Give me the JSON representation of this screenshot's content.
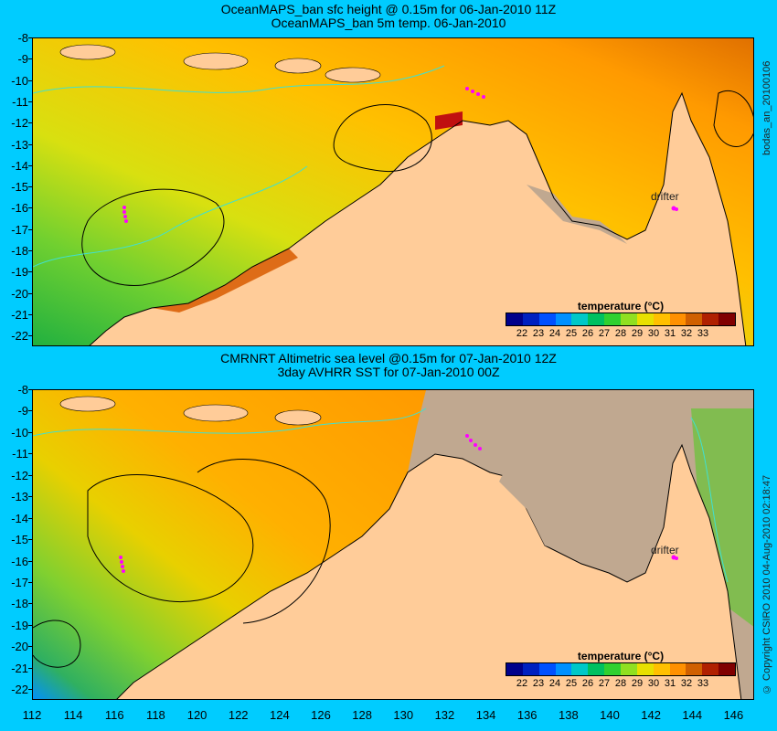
{
  "top": {
    "title1": "OceanMAPS_ban sfc height @ 0.15m for 06-Jan-2010 11Z",
    "title2": "OceanMAPS_ban 5m temp. 06-Jan-2010",
    "side_label": "bodas_an_20100106",
    "drifter_label": "drifter"
  },
  "bottom": {
    "title1": "CMRNRT Altimetric sea level  @0.15m  for 07-Jan-2010 12Z",
    "title2": "3day AVHRR SST for 07-Jan-2010 00Z",
    "side_label": "© Copyright CSIRO 2010   04-Aug-2010 02:18:47",
    "drifter_label": "drifter"
  },
  "colorbar": {
    "title": "temperature (°C)",
    "ticks": [
      "22",
      "23",
      "24",
      "25",
      "26",
      "27",
      "28",
      "29",
      "30",
      "31",
      "32",
      "33"
    ],
    "colors": [
      "#00008b",
      "#0020c0",
      "#0050ff",
      "#0090ff",
      "#00c8c8",
      "#00c060",
      "#30d030",
      "#90e020",
      "#e8e000",
      "#ffc000",
      "#ff9000",
      "#d06000",
      "#b02000",
      "#800000"
    ]
  },
  "y_axis": [
    "-8",
    "-9",
    "-10",
    "-11",
    "-12",
    "-13",
    "-14",
    "-15",
    "-16",
    "-17",
    "-18",
    "-19",
    "-20",
    "-21",
    "-22"
  ],
  "x_axis": [
    "112",
    "114",
    "116",
    "118",
    "120",
    "122",
    "124",
    "126",
    "128",
    "130",
    "132",
    "134",
    "136",
    "138",
    "140",
    "142",
    "144",
    "146"
  ],
  "colors": {
    "background": "#00ccff",
    "land": "#ffcc99",
    "no_data": "#c0a890",
    "drifter": "#ff00ff",
    "contour_black": "#000000",
    "contour_cyan": "#40e0d0"
  },
  "chart_data": [
    {
      "type": "heatmap",
      "title": "OceanMAPS_ban sfc height @ 0.15m for 06-Jan-2010 11Z",
      "subtitle": "OceanMAPS_ban 5m temp. 06-Jan-2010",
      "xlim": [
        112,
        147
      ],
      "ylim": [
        -22.5,
        -8
      ],
      "colorbar_range": [
        22,
        33
      ],
      "colorbar_label": "temperature (°C)",
      "drifters": [
        {
          "label": "drifter",
          "lon": 143.1,
          "lat": -15.9
        }
      ],
      "legend": "bottom-right"
    },
    {
      "type": "heatmap",
      "title": "CMRNRT Altimetric sea level  @0.15m  for 07-Jan-2010 12Z",
      "subtitle": "3day AVHRR SST for 07-Jan-2010 00Z",
      "xlim": [
        112,
        147
      ],
      "ylim": [
        -22.5,
        -8
      ],
      "colorbar_range": [
        22,
        33
      ],
      "colorbar_label": "temperature (°C)",
      "drifters": [
        {
          "label": "drifter",
          "lon": 143.1,
          "lat": -15.9
        }
      ],
      "legend": "bottom-right"
    }
  ]
}
